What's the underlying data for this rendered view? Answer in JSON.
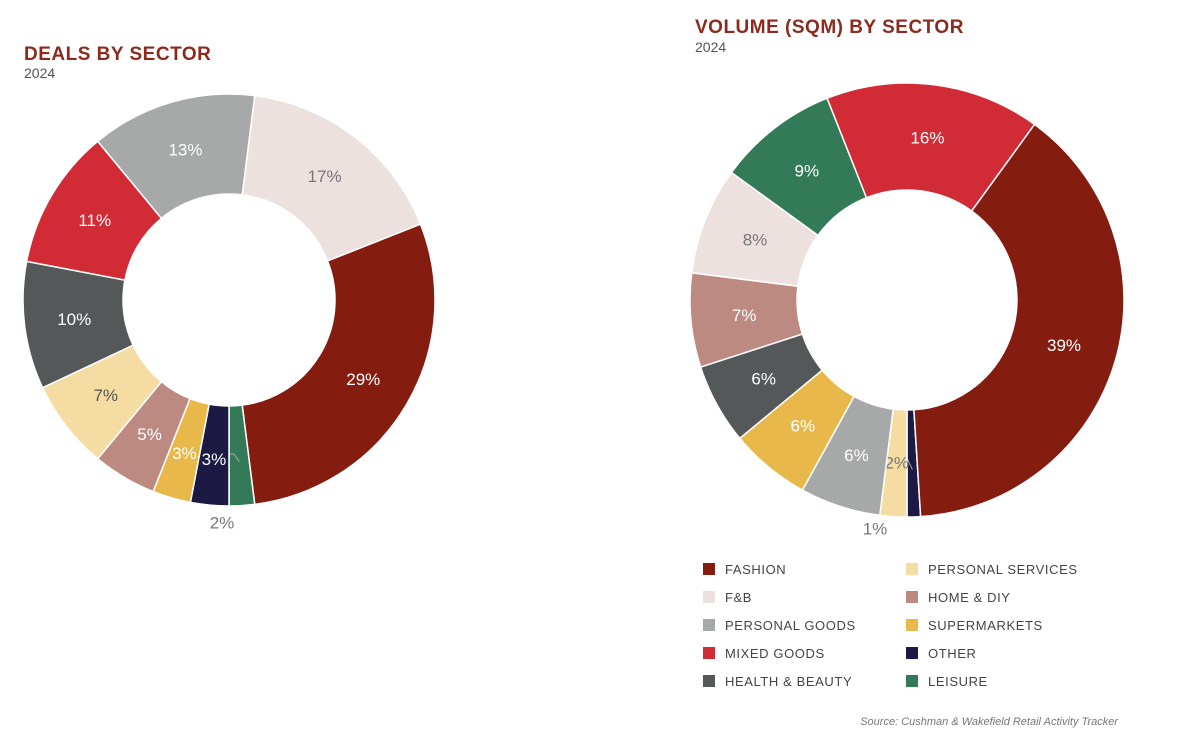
{
  "colors": {
    "fashion": "#841c0f",
    "fnb": "#ede1df",
    "personal_goods": "#a7a9a8",
    "mixed_goods": "#d12b35",
    "health_beauty": "#555859",
    "personal_services": "#f5dca2",
    "home_diy": "#bd8a81",
    "supermarkets": "#e9b84a",
    "other": "#1c1a45",
    "leisure": "#327a58"
  },
  "legend": [
    {
      "key": "fashion",
      "label": "FASHION"
    },
    {
      "key": "fnb",
      "label": "F&B"
    },
    {
      "key": "personal_goods",
      "label": "PERSONAL GOODS"
    },
    {
      "key": "mixed_goods",
      "label": "MIXED GOODS"
    },
    {
      "key": "health_beauty",
      "label": "HEALTH & BEAUTY"
    },
    {
      "key": "personal_services",
      "label": "PERSONAL SERVICES"
    },
    {
      "key": "home_diy",
      "label": "HOME & DIY"
    },
    {
      "key": "supermarkets",
      "label": "SUPERMARKETS"
    },
    {
      "key": "other",
      "label": "OTHER"
    },
    {
      "key": "leisure",
      "label": "LEISURE"
    }
  ],
  "source": "Source: Cushman & Wakefield Retail Activity Tracker",
  "chart_data": [
    {
      "type": "pie",
      "title": "DEALS BY SECTOR",
      "subtitle": "2024",
      "slices": [
        {
          "key": "leisure",
          "value": 2,
          "label": "2%",
          "label_color": "#777777"
        },
        {
          "key": "other",
          "value": 3,
          "label": "3%",
          "label_color": "#ffffff"
        },
        {
          "key": "supermarkets",
          "value": 3,
          "label": "3%",
          "label_color": "#ffffff"
        },
        {
          "key": "home_diy",
          "value": 5,
          "label": "5%",
          "label_color": "#ffffff"
        },
        {
          "key": "personal_services",
          "value": 7,
          "label": "7%",
          "label_color": "#555555"
        },
        {
          "key": "health_beauty",
          "value": 10,
          "label": "10%",
          "label_color": "#ffffff"
        },
        {
          "key": "mixed_goods",
          "value": 11,
          "label": "11%",
          "label_color": "#ffffff"
        },
        {
          "key": "personal_goods",
          "value": 13,
          "label": "13%",
          "label_color": "#ffffff"
        },
        {
          "key": "fnb",
          "value": 17,
          "label": "17%",
          "label_color": "#777777"
        },
        {
          "key": "fashion",
          "value": 29,
          "label": "29%",
          "label_color": "#ffffff"
        }
      ]
    },
    {
      "type": "pie",
      "title": "VOLUME (SQM) BY SECTOR",
      "subtitle": "2024",
      "slices": [
        {
          "key": "other",
          "value": 1,
          "label": "1%",
          "label_color": "#777777"
        },
        {
          "key": "personal_services",
          "value": 2,
          "label": "2%",
          "label_color": "#777777"
        },
        {
          "key": "personal_goods",
          "value": 6,
          "label": "6%",
          "label_color": "#ffffff"
        },
        {
          "key": "supermarkets",
          "value": 6,
          "label": "6%",
          "label_color": "#ffffff"
        },
        {
          "key": "health_beauty",
          "value": 6,
          "label": "6%",
          "label_color": "#ffffff"
        },
        {
          "key": "home_diy",
          "value": 7,
          "label": "7%",
          "label_color": "#ffffff"
        },
        {
          "key": "fnb",
          "value": 8,
          "label": "8%",
          "label_color": "#777777"
        },
        {
          "key": "leisure",
          "value": 9,
          "label": "9%",
          "label_color": "#ffffff"
        },
        {
          "key": "mixed_goods",
          "value": 16,
          "label": "16%",
          "label_color": "#ffffff"
        },
        {
          "key": "fashion",
          "value": 39,
          "label": "39%",
          "label_color": "#ffffff"
        }
      ]
    }
  ]
}
